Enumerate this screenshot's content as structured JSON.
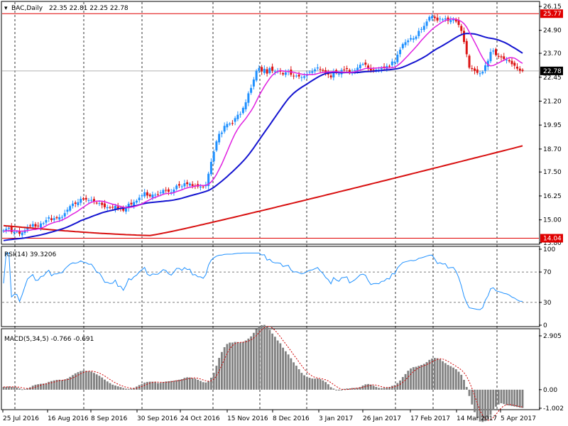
{
  "header": {
    "symbol_label": "BAC,Daily",
    "ohlc": "22.35 22.81 22.25 22.78",
    "rsi_label": "RSI(14) 39.3206",
    "macd_label": "MACD(5,34,5) -0.766 -0.691"
  },
  "colors": {
    "bull_candle": "#1e90ff",
    "bear_candle": "#dc1414",
    "ma_fast": "#e020e0",
    "ma_mid": "#1414d0",
    "ma_slow": "#d81010",
    "hline": "#e00000",
    "rsi_line": "#1e90ff",
    "macd_hist": "#808080",
    "macd_signal": "#d00000"
  },
  "chart_data": [
    {
      "type": "candlestick",
      "name": "price",
      "y_ticks": [
        "26.15",
        "24.90",
        "23.70",
        "22.45",
        "21.20",
        "19.95",
        "18.70",
        "17.50",
        "16.25",
        "15.00",
        "13.80"
      ],
      "ylim": [
        13.8,
        26.15
      ],
      "hlines": [
        {
          "label": "25.77",
          "value": 25.77
        },
        {
          "label": "14.04",
          "value": 14.04
        }
      ],
      "last_label": "22.78",
      "last_value": 22.78,
      "x_labels": [
        "25 Jul 2016",
        "16 Aug 2016",
        "8 Sep 2016",
        "30 Sep 2016",
        "24 Oct 2016",
        "15 Nov 2016",
        "8 Dec 2016",
        "3 Jan 2017",
        "26 Jan 2017",
        "17 Feb 2017",
        "14 Mar 2017",
        "5 Apr 2017"
      ],
      "closes": [
        14.45,
        14.53,
        14.58,
        14.36,
        14.38,
        14.38,
        14.27,
        14.34,
        14.46,
        14.63,
        14.7,
        14.78,
        14.65,
        14.66,
        14.81,
        14.83,
        14.99,
        15.13,
        14.99,
        15.09,
        15.09,
        15.14,
        15.15,
        15.35,
        15.53,
        15.72,
        15.85,
        15.84,
        15.92,
        16.1,
        16.07,
        16.06,
        16.03,
        16.04,
        15.97,
        15.88,
        15.87,
        15.78,
        15.66,
        15.66,
        15.63,
        15.64,
        15.73,
        15.58,
        15.59,
        15.48,
        15.61,
        15.84,
        15.81,
        15.93,
        16.0,
        16.16,
        16.28,
        16.44,
        16.27,
        16.23,
        16.32,
        16.31,
        16.32,
        16.43,
        16.56,
        16.54,
        16.47,
        16.44,
        16.58,
        16.79,
        16.79,
        16.75,
        16.91,
        16.87,
        16.89,
        16.77,
        16.79,
        16.74,
        16.74,
        16.71,
        16.84,
        17.41,
        18.03,
        18.55,
        19.1,
        19.49,
        19.56,
        19.91,
        20.01,
        20.03,
        20.05,
        20.31,
        20.49,
        20.53,
        20.85,
        21.14,
        21.61,
        21.89,
        22.33,
        22.79,
        22.93,
        22.75,
        22.89,
        22.64,
        22.93,
        22.79,
        22.75,
        22.75,
        22.74,
        22.6,
        22.7,
        22.77,
        22.58,
        22.5,
        22.53,
        22.49,
        22.45,
        22.5,
        22.62,
        22.73,
        22.76,
        22.86,
        22.96,
        22.86,
        22.79,
        22.66,
        22.59,
        22.44,
        22.77,
        22.68,
        22.63,
        22.83,
        22.85,
        22.88,
        22.67,
        22.74,
        22.82,
        22.95,
        23.1,
        23.14,
        23.11,
        22.94,
        22.8,
        22.84,
        22.85,
        22.84,
        22.93,
        22.94,
        23.04,
        23.03,
        23.27,
        23.26,
        23.63,
        23.89,
        24.18,
        24.28,
        24.37,
        24.49,
        24.48,
        24.57,
        24.87,
        24.97,
        25.13,
        25.36,
        25.6,
        25.64,
        25.54,
        25.41,
        25.51,
        25.47,
        25.52,
        25.4,
        25.44,
        25.46,
        25.36,
        25.18,
        24.87,
        24.29,
        23.65,
        22.95,
        22.88,
        22.78,
        22.68,
        22.65,
        22.73,
        23.07,
        23.31,
        23.77,
        23.84,
        23.61,
        23.54,
        23.49,
        23.4,
        23.37,
        23.28,
        23.13,
        23.05,
        22.9,
        22.79,
        22.78
      ]
    },
    {
      "type": "line",
      "name": "RSI",
      "y_ticks": [
        "100",
        "70",
        "30",
        "0"
      ],
      "ylim": [
        0,
        100
      ],
      "levels": [
        70,
        30
      ]
    },
    {
      "type": "bar",
      "name": "MACD",
      "y_ticks": [
        "2.905",
        "0.00",
        "-1.002"
      ],
      "ylim": [
        -1.002,
        2.905
      ]
    }
  ]
}
